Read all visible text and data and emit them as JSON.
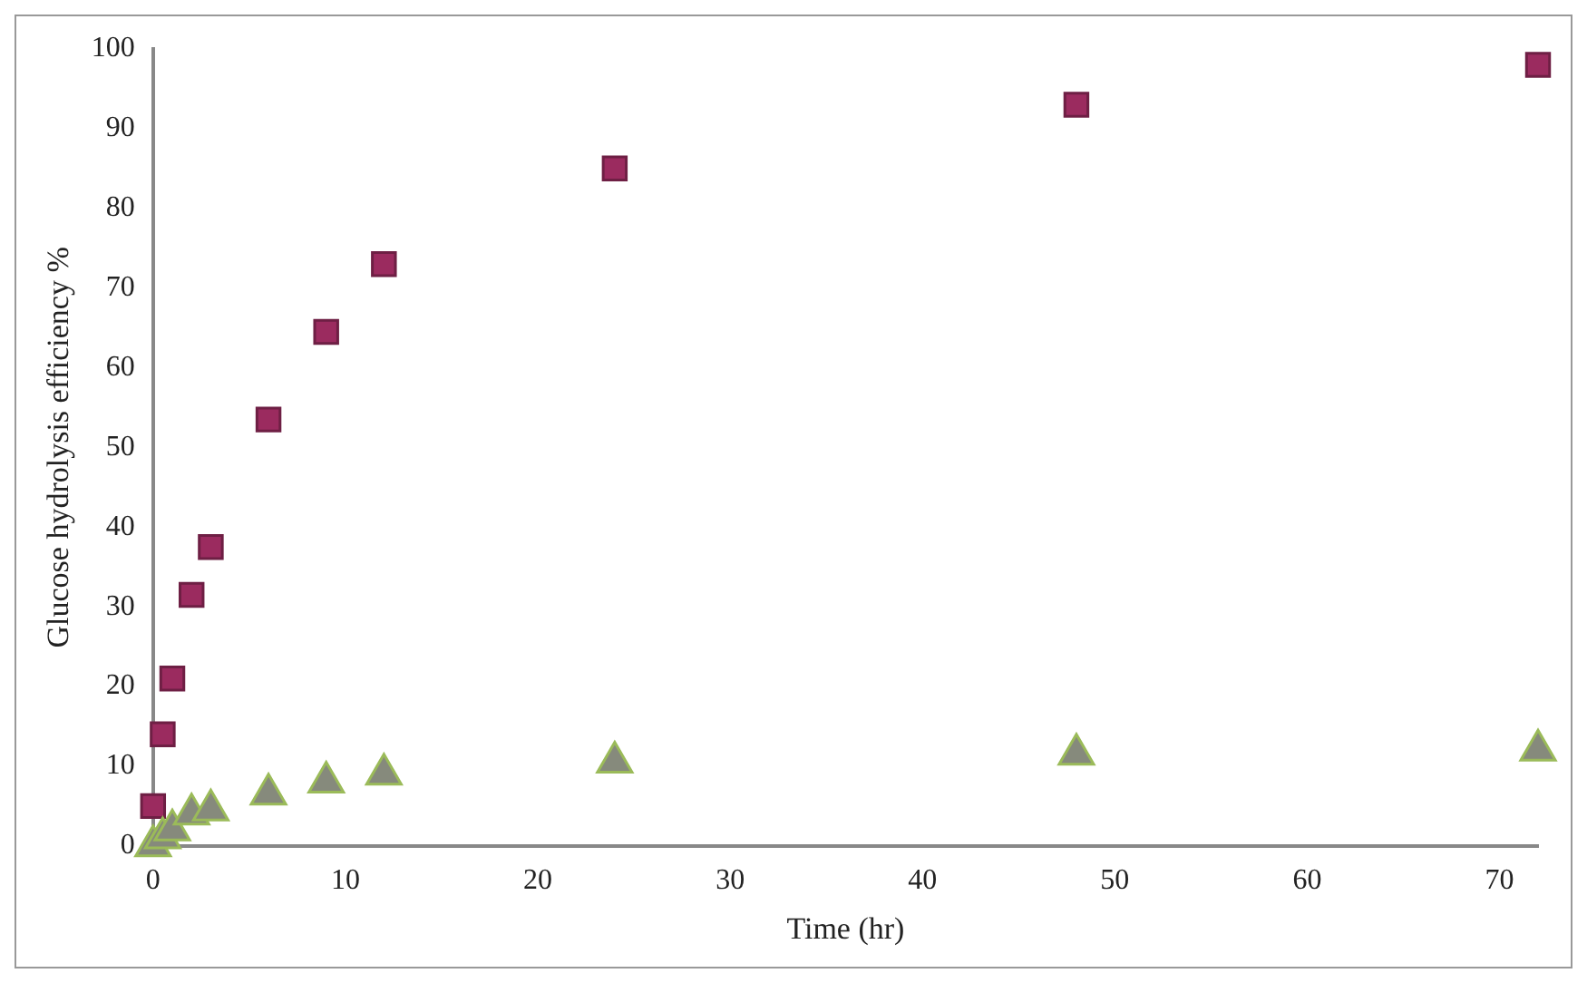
{
  "chart_data": {
    "type": "scatter",
    "xlabel": "Time (hr)",
    "ylabel": "Glucose hydrolysis efficiency %",
    "xlim": [
      0,
      72
    ],
    "xticks": [
      0,
      10,
      20,
      30,
      40,
      50,
      60,
      70
    ],
    "ylim": [
      0,
      100
    ],
    "yticks": [
      0,
      10,
      20,
      30,
      40,
      50,
      60,
      70,
      80,
      90,
      100
    ],
    "grid": false,
    "legend": false,
    "x": [
      0,
      0.5,
      1,
      2,
      3,
      6,
      9,
      12,
      24,
      48,
      72
    ],
    "series": [
      {
        "color": "#9b2b5f",
        "marker": "square",
        "values": [
          5,
          14,
          21,
          31.5,
          37.5,
          53.5,
          64.5,
          73,
          85,
          93,
          98
        ]
      },
      {
        "color": "#868a7c",
        "marker": "triangle",
        "values": [
          0,
          1,
          2,
          4,
          4.5,
          6.5,
          8,
          9,
          10.5,
          11.5,
          12
        ]
      }
    ]
  }
}
